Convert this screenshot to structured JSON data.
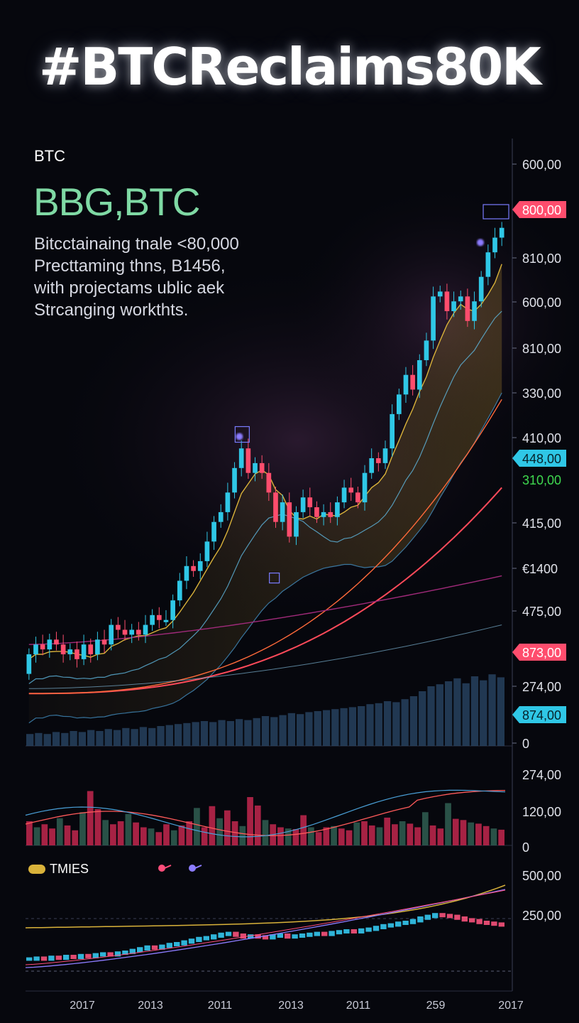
{
  "headline": "#BTCReclaims80K",
  "ticker": "BTC",
  "pair": "BBG,BTC",
  "description": [
    "Bitcctainaing tnale <80,000",
    "Precttaming thns, B1456,",
    "with projectams ublic aek",
    "Strcanging workthts."
  ],
  "legend_label": "TMIES",
  "colors": {
    "up": "#2fc7e6",
    "down": "#ff4d6d",
    "gold": "#d9b23a",
    "pink": "#ff4d7a",
    "violet": "#8c7cff",
    "green_text": "#7fd9a4"
  },
  "chart_data": {
    "type": "candlestick",
    "price_axis_labels": [
      "600,00",
      "810,00",
      "600,00",
      "810,00",
      "330,00",
      "410,00",
      "415,00",
      "€1400",
      "475,00",
      "274,00",
      "0"
    ],
    "price_badges": [
      {
        "text": "800,00",
        "color": "#ff4d6d"
      },
      {
        "text": "448,00",
        "color": "#2fc7e6"
      },
      {
        "text": "310,00",
        "color": "#3fd94f"
      },
      {
        "text": "873,00",
        "color": "#ff4d6d"
      },
      {
        "text": "874,00",
        "color": "#2fc7e6"
      }
    ],
    "osc_axis_labels": [
      "274,00",
      "120,00",
      "0"
    ],
    "bottom_axis_labels": [
      "500,00",
      "250,00"
    ],
    "x_labels": [
      "2017",
      "2013",
      "2011",
      "2013",
      "2011",
      "259",
      "2017"
    ],
    "candles": [
      [
        0.06,
        0.1
      ],
      [
        0.1,
        0.12
      ],
      [
        0.12,
        0.11
      ],
      [
        0.11,
        0.13
      ],
      [
        0.13,
        0.12
      ],
      [
        0.12,
        0.1
      ],
      [
        0.1,
        0.11
      ],
      [
        0.11,
        0.09
      ],
      [
        0.09,
        0.12
      ],
      [
        0.12,
        0.1
      ],
      [
        0.1,
        0.13
      ],
      [
        0.13,
        0.12
      ],
      [
        0.12,
        0.16
      ],
      [
        0.16,
        0.15
      ],
      [
        0.15,
        0.14
      ],
      [
        0.14,
        0.15
      ],
      [
        0.15,
        0.14
      ],
      [
        0.14,
        0.16
      ],
      [
        0.16,
        0.18
      ],
      [
        0.18,
        0.17
      ],
      [
        0.17,
        0.17
      ],
      [
        0.17,
        0.21
      ],
      [
        0.21,
        0.25
      ],
      [
        0.25,
        0.28
      ],
      [
        0.28,
        0.27
      ],
      [
        0.27,
        0.29
      ],
      [
        0.29,
        0.33
      ],
      [
        0.33,
        0.37
      ],
      [
        0.37,
        0.39
      ],
      [
        0.39,
        0.43
      ],
      [
        0.43,
        0.48
      ],
      [
        0.48,
        0.52
      ],
      [
        0.52,
        0.47
      ],
      [
        0.47,
        0.49
      ],
      [
        0.49,
        0.47
      ],
      [
        0.47,
        0.43
      ],
      [
        0.43,
        0.37
      ],
      [
        0.37,
        0.41
      ],
      [
        0.41,
        0.34
      ],
      [
        0.34,
        0.39
      ],
      [
        0.39,
        0.42
      ],
      [
        0.42,
        0.4
      ],
      [
        0.4,
        0.38
      ],
      [
        0.38,
        0.39
      ],
      [
        0.39,
        0.38
      ],
      [
        0.38,
        0.41
      ],
      [
        0.41,
        0.44
      ],
      [
        0.44,
        0.43
      ],
      [
        0.43,
        0.41
      ],
      [
        0.41,
        0.47
      ],
      [
        0.47,
        0.5
      ],
      [
        0.5,
        0.49
      ],
      [
        0.49,
        0.52
      ],
      [
        0.52,
        0.59
      ],
      [
        0.59,
        0.63
      ],
      [
        0.63,
        0.67
      ],
      [
        0.67,
        0.64
      ],
      [
        0.64,
        0.7
      ],
      [
        0.7,
        0.74
      ],
      [
        0.74,
        0.83
      ],
      [
        0.83,
        0.84
      ],
      [
        0.84,
        0.8
      ],
      [
        0.8,
        0.82
      ],
      [
        0.82,
        0.83
      ],
      [
        0.83,
        0.78
      ],
      [
        0.78,
        0.82
      ],
      [
        0.82,
        0.87
      ],
      [
        0.87,
        0.92
      ],
      [
        0.92,
        0.95
      ],
      [
        0.95,
        0.97
      ]
    ],
    "volume_rel": [
      0.12,
      0.13,
      0.12,
      0.14,
      0.13,
      0.15,
      0.14,
      0.16,
      0.15,
      0.17,
      0.16,
      0.18,
      0.17,
      0.19,
      0.18,
      0.2,
      0.21,
      0.22,
      0.23,
      0.24,
      0.25,
      0.24,
      0.26,
      0.25,
      0.27,
      0.26,
      0.28,
      0.3,
      0.29,
      0.31,
      0.33,
      0.32,
      0.34,
      0.35,
      0.36,
      0.37,
      0.38,
      0.39,
      0.4,
      0.42,
      0.43,
      0.45,
      0.44,
      0.47,
      0.5,
      0.55,
      0.6,
      0.62,
      0.65,
      0.68,
      0.63,
      0.7,
      0.66,
      0.72,
      0.69
    ],
    "oscillator_bars": [
      0.4,
      0.3,
      0.35,
      0.28,
      0.45,
      0.33,
      0.25,
      0.55,
      0.9,
      0.6,
      0.42,
      0.35,
      0.4,
      0.52,
      0.38,
      0.3,
      0.28,
      0.22,
      0.35,
      0.25,
      0.33,
      0.4,
      0.62,
      0.3,
      0.65,
      0.45,
      0.58,
      0.4,
      0.32,
      0.8,
      0.66,
      0.42,
      0.35,
      0.3,
      0.28,
      0.27,
      0.5,
      0.3,
      0.22,
      0.3,
      0.32,
      0.28,
      0.25,
      0.38,
      0.4,
      0.33,
      0.3,
      0.46,
      0.35,
      0.4,
      0.36,
      0.3,
      0.55,
      0.33,
      0.28,
      0.7,
      0.44,
      0.42,
      0.38,
      0.36,
      0.32,
      0.28,
      0.26
    ],
    "bottom_candles": [
      0.1,
      0.11,
      0.1,
      0.12,
      0.11,
      0.13,
      0.12,
      0.14,
      0.13,
      0.15,
      0.16,
      0.15,
      0.17,
      0.18,
      0.2,
      0.22,
      0.24,
      0.23,
      0.25,
      0.27,
      0.28,
      0.3,
      0.32,
      0.34,
      0.35,
      0.37,
      0.39,
      0.4,
      0.38,
      0.36,
      0.37,
      0.36,
      0.35,
      0.37,
      0.38,
      0.36,
      0.37,
      0.38,
      0.39,
      0.4,
      0.39,
      0.41,
      0.42,
      0.43,
      0.42,
      0.44,
      0.45,
      0.47,
      0.49,
      0.5,
      0.52,
      0.53,
      0.55,
      0.58,
      0.6,
      0.62,
      0.61,
      0.6,
      0.58,
      0.56,
      0.55,
      0.53,
      0.52,
      0.51,
      0.5
    ]
  }
}
